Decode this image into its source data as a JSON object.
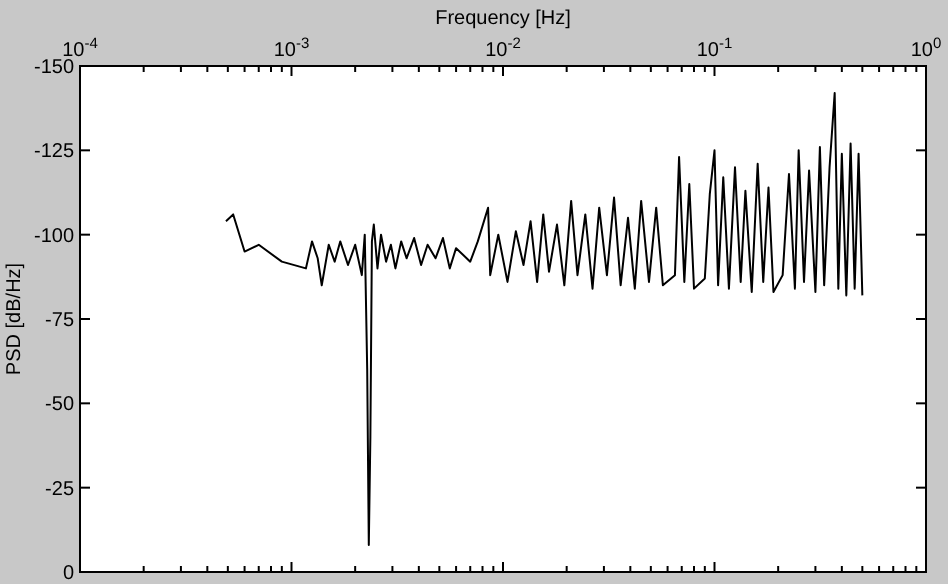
{
  "chart_data": {
    "type": "line",
    "xlabel": "Frequency [Hz]",
    "ylabel": "PSD [dB/Hz]",
    "log": "x",
    "grid": false,
    "marker": "none",
    "line_style": "solid",
    "xlim": [
      0.0001,
      1
    ],
    "xticks": [
      {
        "value": 0.0001,
        "label": "10$^{-4}$"
      },
      {
        "value": 0.001,
        "label": "10$^{-3}$"
      },
      {
        "value": 0.01,
        "label": "10$^{-2}$"
      },
      {
        "value": 0.1,
        "label": "10$^{-1}$"
      },
      {
        "value": 1,
        "label": "10$^{0}$"
      }
    ],
    "ylim": [
      0,
      -150
    ],
    "yticks": [
      0,
      -25,
      -50,
      -75,
      -100,
      -125,
      -150
    ],
    "series": [
      {
        "color": "#000000",
        "x": [
          0.00049,
          0.00053,
          0.0006,
          0.0007,
          0.0009,
          0.00117,
          0.00125,
          0.00133,
          0.00139,
          0.0015,
          0.0016,
          0.0017,
          0.00185,
          0.002,
          0.00215,
          0.00222,
          0.00228,
          0.00232,
          0.00236,
          0.0024,
          0.00245,
          0.00255,
          0.00265,
          0.0028,
          0.00295,
          0.0031,
          0.0033,
          0.0035,
          0.0038,
          0.0041,
          0.0044,
          0.0048,
          0.0052,
          0.0056,
          0.006,
          0.007,
          0.0076,
          0.0085,
          0.0087,
          0.0095,
          0.0105,
          0.0115,
          0.0125,
          0.0135,
          0.0145,
          0.0155,
          0.0165,
          0.018,
          0.0195,
          0.021,
          0.0225,
          0.0245,
          0.0265,
          0.0285,
          0.031,
          0.0335,
          0.036,
          0.039,
          0.042,
          0.045,
          0.049,
          0.053,
          0.057,
          0.065,
          0.068,
          0.072,
          0.076,
          0.08,
          0.09,
          0.095,
          0.1,
          0.104,
          0.11,
          0.117,
          0.125,
          0.133,
          0.14,
          0.15,
          0.16,
          0.17,
          0.18,
          0.19,
          0.21,
          0.225,
          0.24,
          0.25,
          0.265,
          0.28,
          0.3,
          0.315,
          0.33,
          0.35,
          0.37,
          0.385,
          0.4,
          0.42,
          0.44,
          0.46,
          0.48,
          0.5
        ],
        "values": [
          -104,
          -106,
          -95,
          -97,
          -92,
          -90,
          -98,
          -93,
          -85,
          -97,
          -92,
          -98,
          -91,
          -97,
          -88,
          -100,
          -60,
          -8,
          -40,
          -98,
          -103,
          -90,
          -100,
          -92,
          -97,
          -90,
          -98,
          -93,
          -99,
          -91,
          -97,
          -93,
          -99,
          -90,
          -96,
          -92,
          -98,
          -108,
          -88,
          -100,
          -86,
          -101,
          -91,
          -104,
          -86,
          -106,
          -89,
          -103,
          -85,
          -110,
          -88,
          -106,
          -84,
          -108,
          -88,
          -111,
          -85,
          -105,
          -84,
          -110,
          -86,
          -108,
          -85,
          -88,
          -123,
          -86,
          -115,
          -84,
          -87,
          -112,
          -125,
          -85,
          -117,
          -84,
          -120,
          -86,
          -113,
          -83,
          -121,
          -86,
          -114,
          -83,
          -88,
          -118,
          -84,
          -125,
          -86,
          -119,
          -83,
          -126,
          -85,
          -120,
          -142,
          -84,
          -124,
          -82,
          -127,
          -84,
          -124,
          -82
        ]
      }
    ]
  }
}
